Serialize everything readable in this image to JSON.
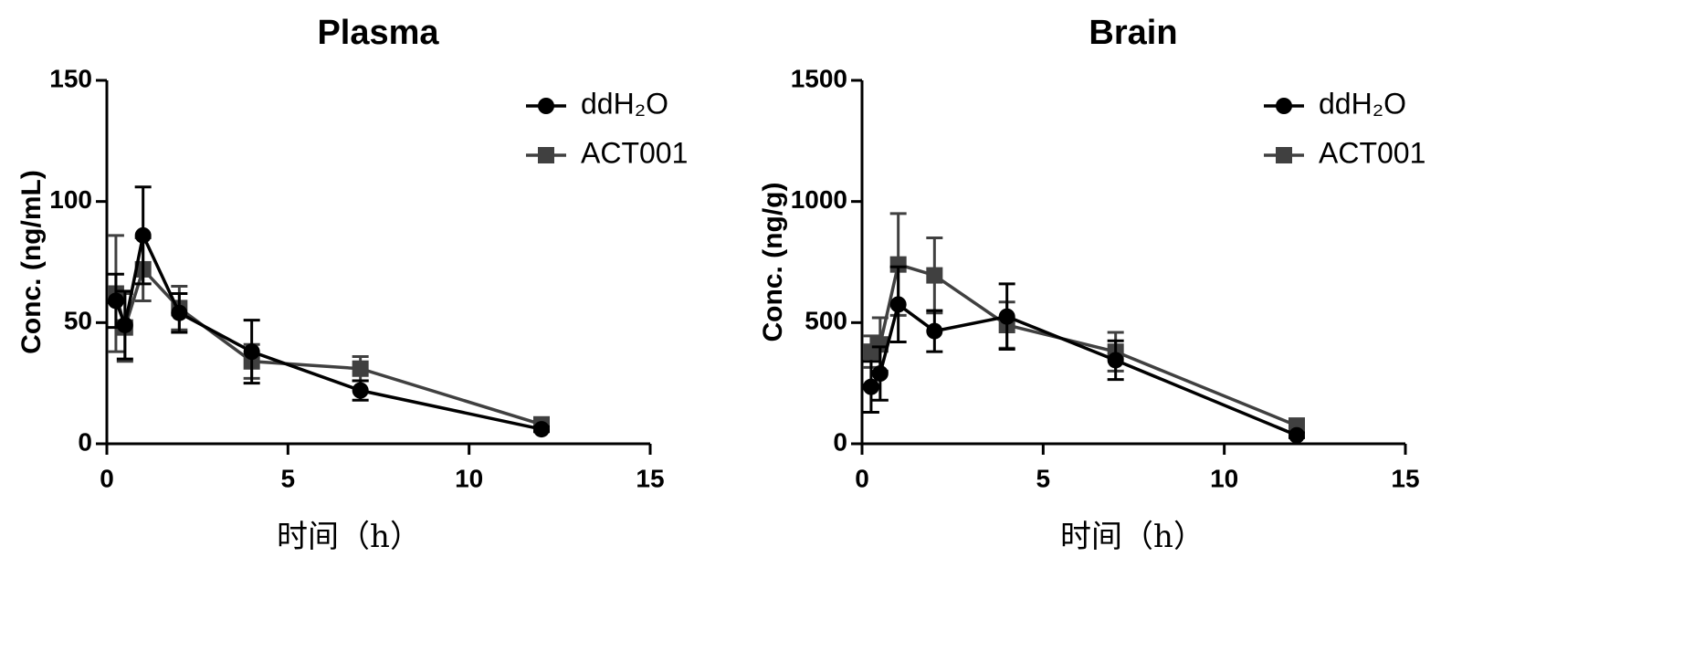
{
  "chart_data": [
    {
      "type": "line",
      "title": "Plasma",
      "xlabel": "时间（h）",
      "ylabel": "Conc. (ng/mL)",
      "xlim": [
        0,
        15
      ],
      "ylim": [
        0,
        150
      ],
      "xticks": [
        0,
        5,
        10,
        15
      ],
      "yticks": [
        0,
        50,
        100,
        150
      ],
      "grid": false,
      "legend_position": "top-right",
      "series": [
        {
          "name": "ddH₂O",
          "marker": "circle",
          "color": "#000000",
          "x": [
            0.25,
            0.5,
            1,
            2,
            4,
            7,
            12
          ],
          "y": [
            59,
            49,
            86,
            54,
            38,
            22,
            6
          ],
          "error": [
            11,
            14,
            20,
            8,
            13,
            4,
            1
          ]
        },
        {
          "name": "ACT001",
          "marker": "square",
          "color": "#404040",
          "x": [
            0.25,
            0.5,
            1,
            2,
            4,
            7,
            12
          ],
          "y": [
            62,
            48,
            72,
            56,
            34,
            31,
            8
          ],
          "error": [
            24,
            14,
            13,
            9,
            7,
            5,
            1
          ]
        }
      ]
    },
    {
      "type": "line",
      "title": "Brain",
      "xlabel": "时间（h）",
      "ylabel": "Conc. (ng/g)",
      "xlim": [
        0,
        15
      ],
      "ylim": [
        0,
        1500
      ],
      "xticks": [
        0,
        5,
        10,
        15
      ],
      "yticks": [
        0,
        500,
        1000,
        1500
      ],
      "grid": false,
      "legend_position": "top-right",
      "series": [
        {
          "name": "ddH₂O",
          "marker": "circle",
          "color": "#000000",
          "x": [
            0.25,
            0.5,
            1,
            2,
            4,
            7,
            12
          ],
          "y": [
            235,
            290,
            575,
            465,
            525,
            345,
            35
          ],
          "error": [
            105,
            110,
            155,
            85,
            135,
            80,
            10
          ]
        },
        {
          "name": "ACT001",
          "marker": "square",
          "color": "#404040",
          "x": [
            0.25,
            0.5,
            1,
            2,
            4,
            7,
            12
          ],
          "y": [
            380,
            410,
            740,
            695,
            490,
            380,
            75
          ],
          "error": [
            65,
            110,
            210,
            155,
            95,
            80,
            10
          ]
        }
      ]
    }
  ]
}
